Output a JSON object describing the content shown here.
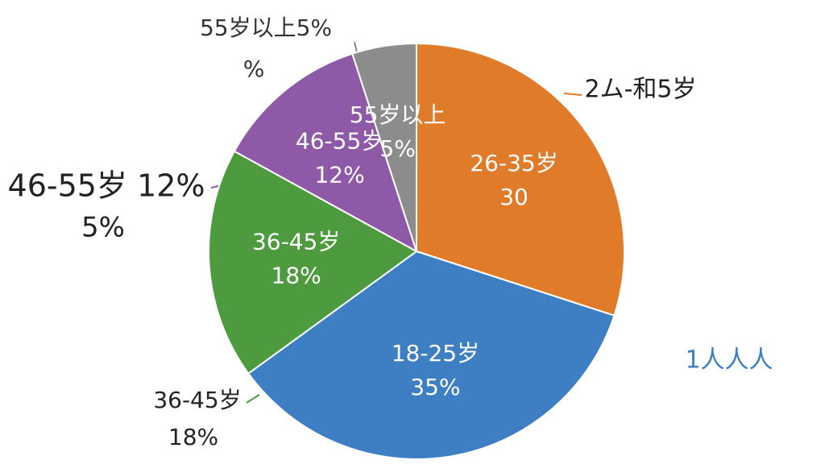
{
  "chart_data": {
    "type": "pie",
    "categories": [
      "26-35岁",
      "18-25岁",
      "36-45岁",
      "46-55岁",
      "55岁以上"
    ],
    "values": [
      30,
      35,
      18,
      12,
      5
    ],
    "value_labels": [
      "30",
      "35%",
      "18%",
      "12%",
      "5%"
    ],
    "colors": [
      "#e07b2a",
      "#3e7ec3",
      "#4e9a3e",
      "#8e5aa8",
      "#8c8c8c"
    ],
    "annotations": [
      "55岁以上5%",
      "%",
      "2ム-和5岁",
      "46-55岁 12%",
      "5%",
      "36-45岁",
      "18%",
      "1人人人"
    ]
  }
}
